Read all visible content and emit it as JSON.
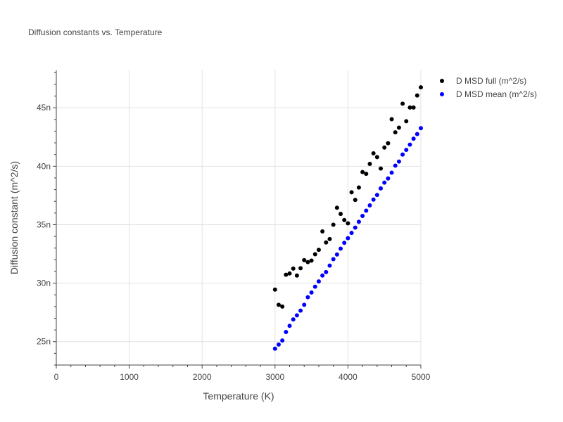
{
  "chart_data": {
    "type": "scatter",
    "title": "Diffusion constants vs. Temperature",
    "xlabel": "Temperature (K)",
    "ylabel": "Diffusion constant (m^2/s)",
    "xlim": [
      0,
      5000
    ],
    "ylim": [
      23,
      48.2
    ],
    "x_ticks": [
      0,
      1000,
      2000,
      3000,
      4000,
      5000
    ],
    "x_tick_labels": [
      "0",
      "1000",
      "2000",
      "3000",
      "4000",
      "5000"
    ],
    "y_ticks": [
      25,
      30,
      35,
      40,
      45
    ],
    "y_tick_labels": [
      "25n",
      "30n",
      "35n",
      "40n",
      "45n"
    ],
    "grid": true,
    "legend_position": "top-right",
    "series": [
      {
        "name": "D MSD full (m^2/s)",
        "color": "#000000",
        "x": [
          3000,
          3050,
          3100,
          3150,
          3200,
          3250,
          3300,
          3350,
          3400,
          3450,
          3500,
          3550,
          3600,
          3650,
          3700,
          3750,
          3800,
          3850,
          3900,
          3950,
          4000,
          4050,
          4100,
          4150,
          4200,
          4250,
          4300,
          4350,
          4400,
          4450,
          4500,
          4550,
          4600,
          4650,
          4700,
          4750,
          4800,
          4850,
          4900,
          4950,
          5000
        ],
        "y": [
          29.45,
          28.15,
          28.0,
          30.72,
          30.83,
          31.25,
          30.65,
          31.28,
          31.97,
          31.8,
          31.93,
          32.47,
          32.85,
          34.43,
          33.48,
          33.77,
          35.0,
          36.45,
          35.92,
          35.4,
          35.12,
          37.77,
          37.12,
          38.18,
          39.5,
          39.35,
          40.2,
          41.1,
          40.78,
          39.8,
          41.6,
          41.97,
          44.02,
          42.9,
          43.3,
          45.35,
          43.85,
          45.02,
          45.02,
          46.05,
          46.75
        ]
      },
      {
        "name": "D MSD mean (m^2/s)",
        "color": "#0000ff",
        "x": [
          3000,
          3050,
          3100,
          3150,
          3200,
          3250,
          3300,
          3350,
          3400,
          3450,
          3500,
          3550,
          3600,
          3650,
          3700,
          3750,
          3800,
          3850,
          3900,
          3950,
          4000,
          4050,
          4100,
          4150,
          4200,
          4250,
          4300,
          4350,
          4400,
          4450,
          4500,
          4550,
          4600,
          4650,
          4700,
          4750,
          4800,
          4850,
          4900,
          4950,
          5000
        ],
        "y": [
          24.4,
          24.75,
          25.1,
          25.83,
          26.35,
          26.9,
          27.25,
          27.65,
          28.15,
          28.8,
          29.2,
          29.7,
          30.15,
          30.65,
          30.95,
          31.5,
          32.05,
          32.45,
          32.95,
          33.45,
          33.85,
          34.3,
          34.75,
          35.25,
          35.75,
          36.2,
          36.65,
          37.15,
          37.55,
          38.1,
          38.6,
          38.95,
          39.45,
          40.05,
          40.4,
          41.0,
          41.4,
          41.85,
          42.35,
          42.75,
          43.25
        ]
      }
    ]
  }
}
